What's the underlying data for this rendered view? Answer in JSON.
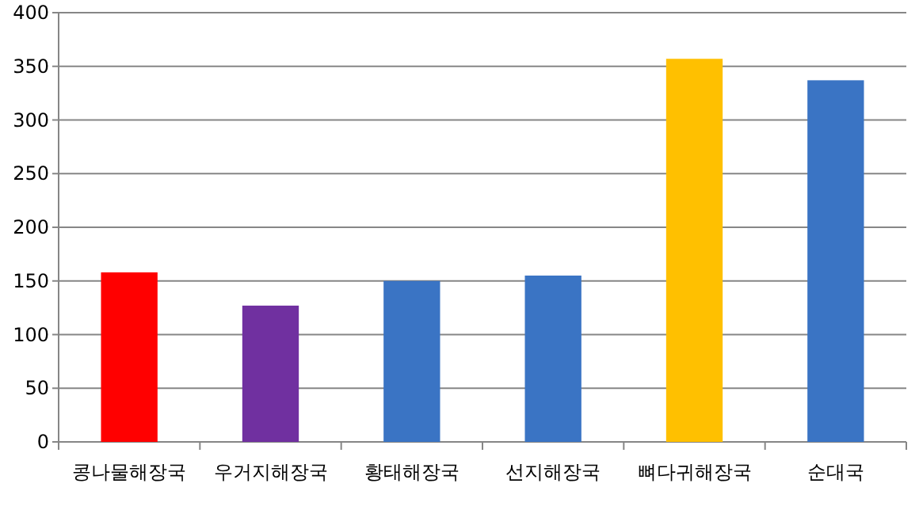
{
  "chart_data": {
    "type": "bar",
    "categories": [
      "콩나물해장국",
      "우거지해장국",
      "황태해장국",
      "선지해장국",
      "뼈다귀해장국",
      "순대국"
    ],
    "values": [
      158,
      127,
      150,
      155,
      357,
      337
    ],
    "colors": [
      "#ff0000",
      "#7030a0",
      "#3a74c4",
      "#3a74c4",
      "#ffc000",
      "#3a74c4"
    ],
    "ylim": [
      0,
      400
    ],
    "yticks": [
      0,
      50,
      100,
      150,
      200,
      250,
      300,
      350,
      400
    ],
    "grid": "y"
  }
}
